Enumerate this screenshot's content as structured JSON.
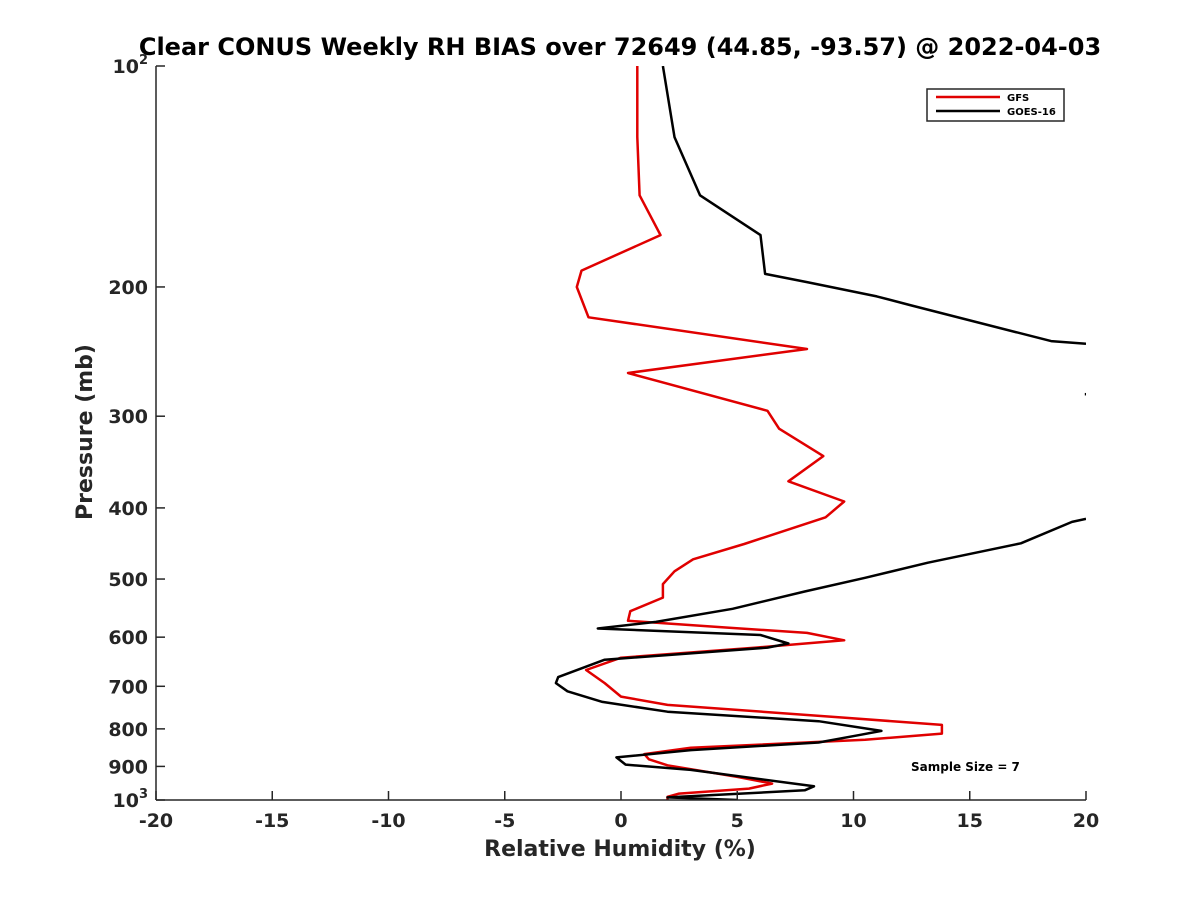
{
  "chart_data": {
    "type": "line",
    "title": "Clear CONUS Weekly RH BIAS over 72649 (44.85, -93.57) @ 2022-04-03",
    "xlabel": "Relative Humidity (%)",
    "ylabel": "Pressure (mb)",
    "xlim": [
      -20,
      20
    ],
    "ylim": [
      100,
      1000
    ],
    "y_scale": "log",
    "y_reversed": true,
    "grid": false,
    "x_ticks": [
      {
        "value": -20,
        "label": "-20"
      },
      {
        "value": -15,
        "label": "-15"
      },
      {
        "value": -10,
        "label": "-10"
      },
      {
        "value": -5,
        "label": "-5"
      },
      {
        "value": 0,
        "label": "0"
      },
      {
        "value": 5,
        "label": "5"
      },
      {
        "value": 10,
        "label": "10"
      },
      {
        "value": 15,
        "label": "15"
      },
      {
        "value": 20,
        "label": "20"
      }
    ],
    "y_ticks": [
      {
        "value": 100,
        "label": "10",
        "sup": "2"
      },
      {
        "value": 200,
        "label": "200",
        "sup": ""
      },
      {
        "value": 300,
        "label": "300",
        "sup": ""
      },
      {
        "value": 400,
        "label": "400",
        "sup": ""
      },
      {
        "value": 500,
        "label": "500",
        "sup": ""
      },
      {
        "value": 600,
        "label": "600",
        "sup": ""
      },
      {
        "value": 700,
        "label": "700",
        "sup": ""
      },
      {
        "value": 800,
        "label": "800",
        "sup": ""
      },
      {
        "value": 900,
        "label": "900",
        "sup": ""
      },
      {
        "value": 1000,
        "label": "10",
        "sup": "3"
      }
    ],
    "legend_position": "top-right",
    "annotation": "Sample Size = 7",
    "series": [
      {
        "name": "GFS",
        "color": "#e00000",
        "segments": [
          [
            [
              0.7,
              100
            ],
            [
              0.7,
              125
            ],
            [
              0.8,
              150
            ],
            [
              1.7,
              170
            ],
            [
              -1.7,
              190
            ],
            [
              -1.9,
              200
            ],
            [
              -1.4,
              220
            ],
            [
              8.0,
              243
            ],
            [
              0.3,
              262
            ],
            [
              6.3,
              295
            ],
            [
              6.8,
              312
            ],
            [
              8.7,
              340
            ],
            [
              7.2,
              368
            ],
            [
              9.6,
              392
            ],
            [
              8.8,
              412
            ],
            [
              5.3,
              448
            ],
            [
              3.1,
              470
            ],
            [
              2.3,
              488
            ],
            [
              1.8,
              508
            ],
            [
              1.8,
              530
            ],
            [
              0.4,
              553
            ],
            [
              0.3,
              570
            ],
            [
              4.5,
              582
            ],
            [
              8.0,
              592
            ],
            [
              9.6,
              606
            ],
            [
              5.8,
              620
            ],
            [
              0.0,
              640
            ],
            [
              -1.5,
              665
            ],
            [
              -0.7,
              693
            ],
            [
              0.0,
              723
            ],
            [
              2.0,
              742
            ],
            [
              9.5,
              772
            ],
            [
              13.8,
              790
            ],
            [
              13.8,
              812
            ],
            [
              10.5,
              828
            ],
            [
              3.0,
              849
            ],
            [
              1.0,
              866
            ],
            [
              1.2,
              880
            ],
            [
              2.0,
              897
            ],
            [
              5.0,
              930
            ],
            [
              6.5,
              950
            ],
            [
              5.5,
              965
            ],
            [
              2.5,
              980
            ],
            [
              2.0,
              990
            ],
            [
              2.0,
              1000
            ]
          ]
        ]
      },
      {
        "name": "GOES-16",
        "color": "#000000",
        "segments": [
          [
            [
              1.8,
              100
            ],
            [
              2.3,
              125
            ],
            [
              3.4,
              150
            ],
            [
              6.0,
              170
            ],
            [
              6.2,
              192
            ],
            [
              8.0,
              197
            ],
            [
              11.0,
              206
            ],
            [
              12.5,
              212
            ],
            [
              18.5,
              237
            ],
            [
              20.0,
              239
            ]
          ],
          [
            [
              20.0,
              414
            ],
            [
              19.4,
              418
            ],
            [
              17.2,
              447
            ],
            [
              13.2,
              475
            ],
            [
              10.5,
              498
            ],
            [
              7.9,
              520
            ],
            [
              4.8,
              549
            ],
            [
              1.5,
              572
            ],
            [
              -1.0,
              584
            ],
            [
              6.0,
              596
            ],
            [
              7.2,
              612
            ],
            [
              6.3,
              620
            ],
            [
              -0.7,
              644
            ],
            [
              -2.7,
              680
            ],
            [
              -2.8,
              693
            ],
            [
              -2.3,
              711
            ],
            [
              -0.8,
              735
            ],
            [
              2.0,
              758
            ],
            [
              8.5,
              781
            ],
            [
              11.2,
              805
            ],
            [
              10.3,
              815
            ],
            [
              8.5,
              835
            ],
            [
              3.0,
              855
            ],
            [
              -0.2,
              875
            ],
            [
              0.2,
              895
            ],
            [
              3.0,
              910
            ],
            [
              8.3,
              958
            ],
            [
              7.9,
              970
            ],
            [
              2.0,
              992
            ],
            [
              5.0,
              1000
            ]
          ],
          [
            [
              19.95,
              280
            ],
            [
              20.0,
              280
            ]
          ]
        ]
      }
    ]
  }
}
